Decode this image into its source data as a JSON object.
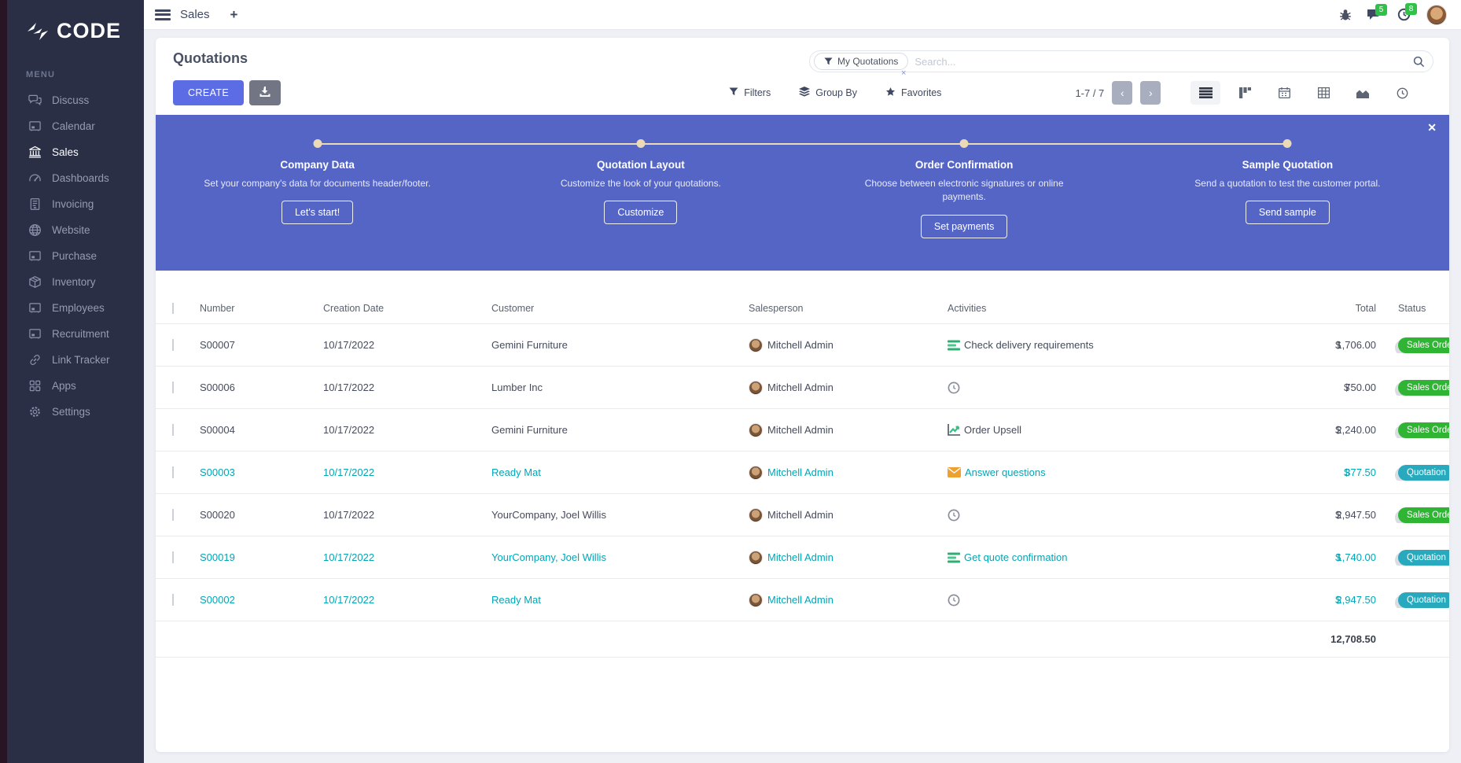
{
  "brand": {
    "name": "CODE",
    "menu_label": "MENU"
  },
  "topbar": {
    "app_name": "Sales",
    "new_tab_label": "+",
    "message_count": "5",
    "activity_count": "8"
  },
  "sidebar": {
    "items": [
      {
        "label": "Discuss",
        "icon": "discuss-icon",
        "active": false
      },
      {
        "label": "Calendar",
        "icon": "calendar-icon",
        "active": false
      },
      {
        "label": "Sales",
        "icon": "sales-icon",
        "active": true
      },
      {
        "label": "Dashboards",
        "icon": "dashboards-icon",
        "active": false
      },
      {
        "label": "Invoicing",
        "icon": "invoicing-icon",
        "active": false
      },
      {
        "label": "Website",
        "icon": "website-icon",
        "active": false
      },
      {
        "label": "Purchase",
        "icon": "purchase-icon",
        "active": false
      },
      {
        "label": "Inventory",
        "icon": "inventory-icon",
        "active": false
      },
      {
        "label": "Employees",
        "icon": "employees-icon",
        "active": false
      },
      {
        "label": "Recruitment",
        "icon": "recruitment-icon",
        "active": false
      },
      {
        "label": "Link Tracker",
        "icon": "link-tracker-icon",
        "active": false
      },
      {
        "label": "Apps",
        "icon": "apps-icon",
        "active": false
      },
      {
        "label": "Settings",
        "icon": "settings-icon",
        "active": false
      }
    ]
  },
  "control_panel": {
    "title": "Quotations",
    "create_label": "CREATE",
    "filters_label": "Filters",
    "group_by_label": "Group By",
    "favorites_label": "Favorites",
    "pager_text": "1-7 / 7",
    "pager_prev": "‹",
    "pager_next": "›",
    "search_facet": "My Quotations",
    "facet_remove": "×",
    "search_placeholder": "Search..."
  },
  "banner": {
    "close_label": "✕",
    "steps": [
      {
        "title": "Company Data",
        "desc": "Set your company's data for documents header/footer.",
        "button": "Let's start!"
      },
      {
        "title": "Quotation Layout",
        "desc": "Customize the look of your quotations.",
        "button": "Customize"
      },
      {
        "title": "Order Confirmation",
        "desc": "Choose between electronic signatures or online payments.",
        "button": "Set payments"
      },
      {
        "title": "Sample Quotation",
        "desc": "Send a quotation to test the customer portal.",
        "button": "Send sample"
      }
    ]
  },
  "table": {
    "headers": [
      "Number",
      "Creation Date",
      "Customer",
      "Salesperson",
      "Activities",
      "Total",
      "Status"
    ],
    "rows": [
      {
        "number": "S00007",
        "creation_date": "10/17/2022",
        "customer": "Gemini Furniture",
        "salesperson": "Mitchell Admin",
        "activity_icon": "list-check-icon",
        "activity_text": "Check delivery requirements",
        "currency": "$",
        "total": "1,706.00",
        "status": "Sales Order",
        "status_color": "green",
        "highlight": false
      },
      {
        "number": "S00006",
        "creation_date": "10/17/2022",
        "customer": "Lumber Inc",
        "salesperson": "Mitchell Admin",
        "activity_icon": "clock-icon",
        "activity_text": "",
        "currency": "$",
        "total": "750.00",
        "status": "Sales Order",
        "status_color": "green",
        "highlight": false
      },
      {
        "number": "S00004",
        "creation_date": "10/17/2022",
        "customer": "Gemini Furniture",
        "salesperson": "Mitchell Admin",
        "activity_icon": "line-chart-icon",
        "activity_text": "Order Upsell",
        "currency": "$",
        "total": "2,240.00",
        "status": "Sales Order",
        "status_color": "green",
        "highlight": false
      },
      {
        "number": "S00003",
        "creation_date": "10/17/2022",
        "customer": "Ready Mat",
        "salesperson": "Mitchell Admin",
        "activity_icon": "envelope-icon",
        "activity_text": "Answer questions",
        "currency": "$",
        "total": "377.50",
        "status": "Quotation",
        "status_color": "teal",
        "highlight": true
      },
      {
        "number": "S00020",
        "creation_date": "10/17/2022",
        "customer": "YourCompany, Joel Willis",
        "salesperson": "Mitchell Admin",
        "activity_icon": "clock-icon",
        "activity_text": "",
        "currency": "$",
        "total": "2,947.50",
        "status": "Sales Order",
        "status_color": "green",
        "highlight": false
      },
      {
        "number": "S00019",
        "creation_date": "10/17/2022",
        "customer": "YourCompany, Joel Willis",
        "salesperson": "Mitchell Admin",
        "activity_icon": "list-check-icon",
        "activity_text": "Get quote confirmation",
        "currency": "$",
        "total": "1,740.00",
        "status": "Quotation Sent",
        "status_color": "teal",
        "highlight": true
      },
      {
        "number": "S00002",
        "creation_date": "10/17/2022",
        "customer": "Ready Mat",
        "salesperson": "Mitchell Admin",
        "activity_icon": "clock-icon",
        "activity_text": "",
        "currency": "$",
        "total": "2,947.50",
        "status": "Quotation",
        "status_color": "teal",
        "highlight": true
      }
    ],
    "footer_total": "12,708.50"
  },
  "colors": {
    "accent": "#5b6ce4",
    "teal_text": "#00a6b6",
    "badge_green": "#30b434",
    "badge_teal": "#28a9bd",
    "sidebar_bg": "#2a2f45",
    "banner_line": "#ecd9b6"
  }
}
